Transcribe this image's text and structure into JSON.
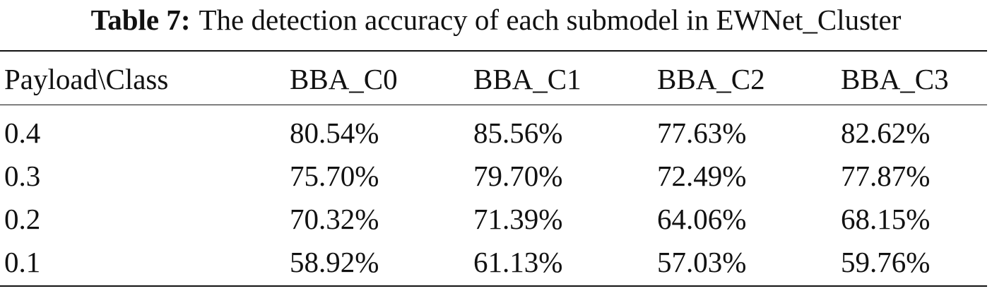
{
  "table": {
    "caption": {
      "label": "Table 7:",
      "text": "The detection accuracy of each submodel in EWNet_Cluster"
    },
    "header": [
      "Payload\\Class",
      "BBA_C0",
      "BBA_C1",
      "BBA_C2",
      "BBA_C3"
    ],
    "rows": [
      [
        "0.4",
        "80.54%",
        "85.56%",
        "77.63%",
        "82.62%"
      ],
      [
        "0.3",
        "75.70%",
        "79.70%",
        "72.49%",
        "77.87%"
      ],
      [
        "0.2",
        "70.32%",
        "71.39%",
        "64.06%",
        "68.15%"
      ],
      [
        "0.1",
        "58.92%",
        "61.13%",
        "57.03%",
        "59.76%"
      ]
    ]
  }
}
